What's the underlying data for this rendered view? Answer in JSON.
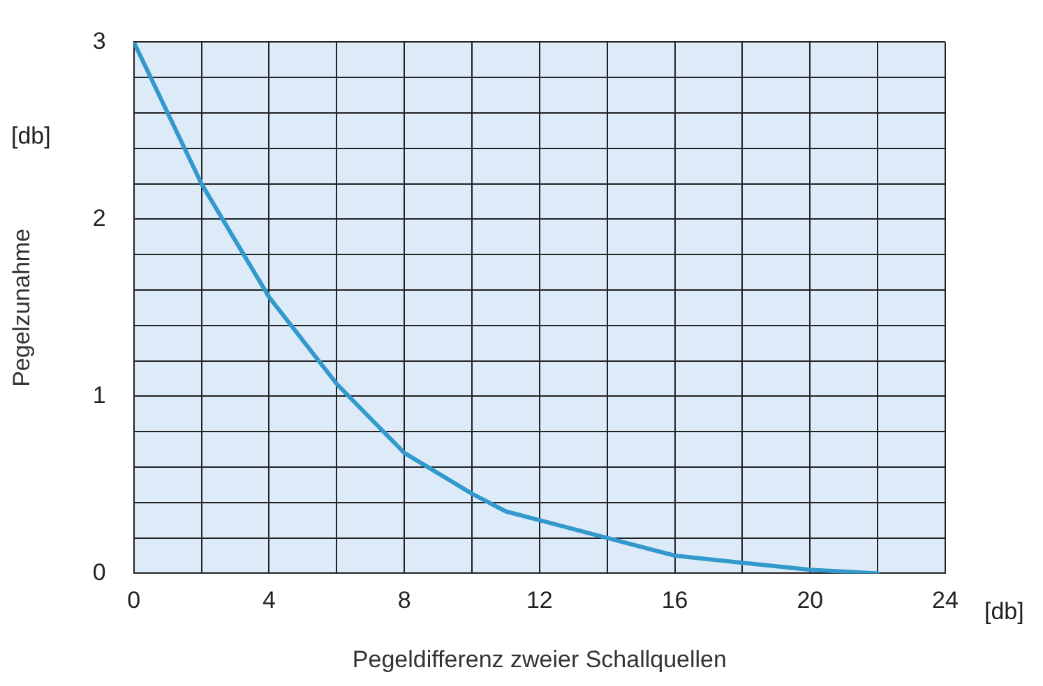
{
  "chart_data": {
    "type": "line",
    "xlabel": "Pegeldifferenz zweier Schallquellen",
    "ylabel": "Pegelzunahme",
    "annotations": [
      "[db]",
      "[db]"
    ],
    "x": [
      0,
      2,
      4,
      6,
      8,
      10,
      11,
      12,
      14,
      16,
      18,
      20,
      22
    ],
    "series": [
      {
        "color": "#3399cc",
        "values": [
          3,
          2.2,
          1.56,
          1.07,
          0.68,
          0.45,
          0.35,
          0.3,
          0.2,
          0.1,
          0.06,
          0.02,
          0
        ]
      }
    ],
    "xlim": [
      0,
      24
    ],
    "xticks": [
      0,
      {
        "value": 2,
        "label": null
      },
      4,
      {
        "value": 6,
        "label": null
      },
      8,
      {
        "value": 10,
        "label": null
      },
      12,
      {
        "value": 14,
        "label": null
      },
      16,
      {
        "value": 18,
        "label": null
      },
      20,
      {
        "value": 22,
        "label": null
      },
      24
    ],
    "ylim": [
      0,
      3
    ],
    "yticks": [
      0,
      {
        "value": 0.2,
        "label": null
      },
      {
        "value": 0.4,
        "label": null
      },
      {
        "value": 0.6,
        "label": null
      },
      {
        "value": 0.8,
        "label": null
      },
      1,
      {
        "value": 1.2,
        "label": null
      },
      {
        "value": 1.4,
        "label": null
      },
      {
        "value": 1.6,
        "label": null
      },
      {
        "value": 1.8,
        "label": null
      },
      2,
      {
        "value": 2.2,
        "label": null
      },
      {
        "value": 2.4,
        "label": null
      },
      {
        "value": 2.6,
        "label": null
      },
      {
        "value": 2.8,
        "label": null
      },
      3
    ],
    "grid": true,
    "legend": false,
    "marker": "none",
    "line_style": "solid"
  }
}
